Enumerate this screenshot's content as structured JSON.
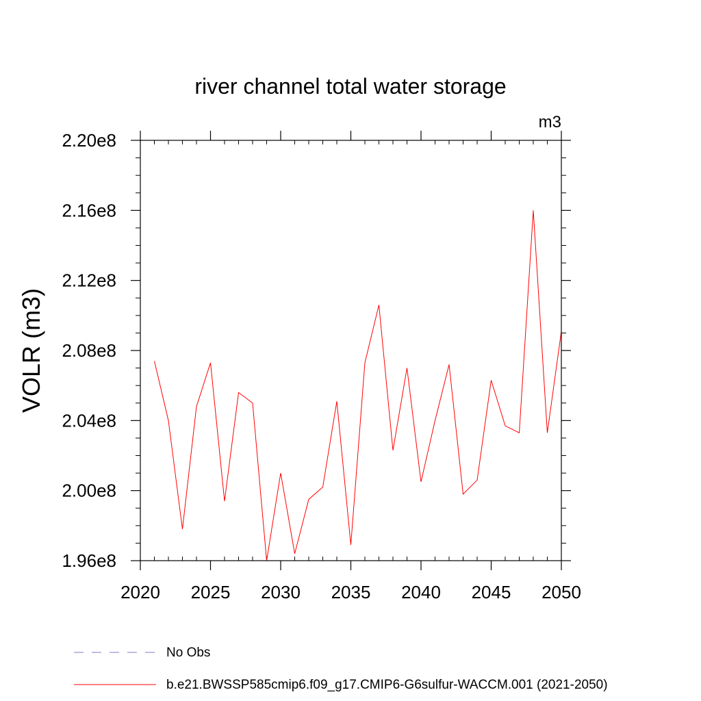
{
  "chart_data": {
    "type": "line",
    "title": "river channel total water storage",
    "units_label": "m3",
    "ylabel": "VOLR  (m3)",
    "xlabel": "",
    "xlim": [
      2020,
      2050
    ],
    "ylim": [
      196000000.0,
      220000000.0
    ],
    "x_ticks": [
      2020,
      2025,
      2030,
      2035,
      2040,
      2045,
      2050
    ],
    "x_tick_labels": [
      "2020",
      "2025",
      "2030",
      "2035",
      "2040",
      "2045",
      "2050"
    ],
    "y_ticks": [
      196000000.0,
      200000000.0,
      204000000.0,
      208000000.0,
      212000000.0,
      216000000.0,
      220000000.0
    ],
    "y_tick_labels": [
      "1.96e8",
      "2.00e8",
      "2.04e8",
      "2.08e8",
      "2.12e8",
      "2.16e8",
      "2.20e8"
    ],
    "grid": false,
    "legend_position": "bottom",
    "series": [
      {
        "name": "b.e21.BWSSP585cmip6.f09_g17.CMIP6-G6sulfur-WACCM.001 (2021-2050)",
        "color": "#ff0000",
        "style": "solid",
        "x": [
          2021,
          2022,
          2023,
          2024,
          2025,
          2026,
          2027,
          2028,
          2029,
          2030,
          2031,
          2032,
          2033,
          2034,
          2035,
          2036,
          2037,
          2038,
          2039,
          2040,
          2041,
          2042,
          2043,
          2044,
          2045,
          2046,
          2047,
          2048,
          2049,
          2050
        ],
        "y": [
          207400000.0,
          204000000.0,
          197800000.0,
          204800000.0,
          207300000.0,
          199400000.0,
          205600000.0,
          205000000.0,
          196000000.0,
          201000000.0,
          196400000.0,
          199500000.0,
          200200000.0,
          205100000.0,
          196900000.0,
          207300000.0,
          210600000.0,
          202300000.0,
          207000000.0,
          200500000.0,
          204000000.0,
          207200000.0,
          199800000.0,
          200600000.0,
          206300000.0,
          203700000.0,
          203300000.0,
          216000000.0,
          203300000.0,
          209100000.0
        ]
      }
    ],
    "legend_entries": [
      {
        "label": "No Obs",
        "color": "#7b7bc8",
        "style": "dashed"
      },
      {
        "label": "b.e21.BWSSP585cmip6.f09_g17.CMIP6-G6sulfur-WACCM.001 (2021-2050)",
        "color": "#ff0000",
        "style": "solid"
      }
    ]
  }
}
